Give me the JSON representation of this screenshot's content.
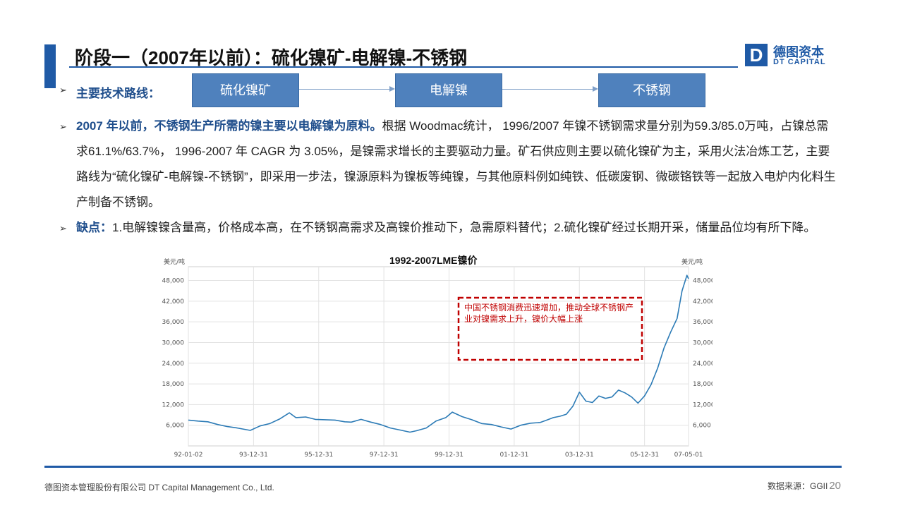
{
  "header": {
    "title": "阶段一（2007年以前）：硫化镍矿-电解镍-不锈钢",
    "logo_letter": "D",
    "logo_cn": "德图资本",
    "logo_en": "DT CAPITAL"
  },
  "route": {
    "label": "主要技术路线：",
    "steps": [
      "硫化镍矿",
      "电解镍",
      "不锈钢"
    ]
  },
  "para1": {
    "highlight": "2007 年以前，不锈钢生产所需的镍主要以电解镍为原料。",
    "text": "根据 Woodmac统计， 1996/2007 年镍不锈钢需求量分别为59.3/85.0万吨，占镍总需求61.1%/63.7%， 1996-2007 年 CAGR 为 3.05%，是镍需求增长的主要驱动力量。矿石供应则主要以硫化镍矿为主，采用火法冶炼工艺，主要路线为“硫化镍矿-电解镍-不锈钢”，即采用一步法，镍源原料为镍板等纯镍，与其他原料例如纯铁、低碳废钢、微碳铬铁等一起放入电炉内化料生产制备不锈钢。"
  },
  "para2": {
    "highlight": "缺点：",
    "text": "1.电解镍镍含量高，价格成本高，在不锈钢高需求及高镍价推动下，急需原料替代；2.硫化镍矿经过长期开采，储量品位均有所下降。"
  },
  "chart_data": {
    "type": "line",
    "title": "1992-2007LME镍价",
    "left_unit": "美元/吨",
    "right_unit": "美元/吨",
    "ylim": [
      0,
      52000
    ],
    "yticks": [
      6000,
      12000,
      18000,
      24000,
      30000,
      36000,
      42000,
      48000
    ],
    "ytick_labels": [
      "6,000",
      "12,000",
      "18,000",
      "24,000",
      "30,000",
      "36,000",
      "42,000",
      "48,000"
    ],
    "xlim": [
      1992.0,
      2007.35
    ],
    "xticks": [
      1992.0,
      1994.0,
      1996.0,
      1998.0,
      2000.0,
      2002.0,
      2004.0,
      2006.0,
      2007.35
    ],
    "xtick_labels": [
      "92-01-02",
      "93-12-31",
      "95-12-31",
      "97-12-31",
      "99-12-31",
      "01-12-31",
      "03-12-31",
      "05-12-31",
      "07-05-01"
    ],
    "grid": true,
    "series": [
      {
        "color": "#2c7bb6",
        "x": [
          1992.0,
          1992.3,
          1992.6,
          1992.9,
          1993.2,
          1993.5,
          1993.9,
          1994.2,
          1994.5,
          1994.8,
          1995.1,
          1995.3,
          1995.6,
          1995.9,
          1996.2,
          1996.5,
          1996.8,
          1997.0,
          1997.3,
          1997.6,
          1997.9,
          1998.2,
          1998.5,
          1998.8,
          1999.0,
          1999.3,
          1999.6,
          1999.9,
          2000.1,
          2000.4,
          2000.7,
          2001.0,
          2001.3,
          2001.6,
          2001.9,
          2002.2,
          2002.5,
          2002.8,
          2003.0,
          2003.2,
          2003.4,
          2003.6,
          2003.8,
          2004.0,
          2004.2,
          2004.4,
          2004.6,
          2004.8,
          2005.0,
          2005.2,
          2005.4,
          2005.6,
          2005.8,
          2006.0,
          2006.2,
          2006.4,
          2006.6,
          2006.8,
          2007.0,
          2007.15,
          2007.3,
          2007.35
        ],
        "y": [
          7500,
          7200,
          7000,
          6200,
          5600,
          5200,
          4500,
          5800,
          6500,
          7800,
          9600,
          8200,
          8400,
          7700,
          7600,
          7500,
          7000,
          6900,
          7700,
          6900,
          6200,
          5200,
          4600,
          4000,
          4400,
          5200,
          7200,
          8200,
          9800,
          8500,
          7600,
          6500,
          6200,
          5500,
          4900,
          6000,
          6600,
          6800,
          7500,
          8200,
          8600,
          9200,
          11500,
          15600,
          13000,
          12600,
          14500,
          13800,
          14200,
          16200,
          15400,
          14200,
          12400,
          14500,
          17800,
          22500,
          28500,
          33000,
          37000,
          45000,
          49500,
          48500
        ]
      }
    ],
    "annotation": "中国不锈钢消费迅速增加，推动全球不锈钢产业对镍需求上升，镍价大幅上涨"
  },
  "footer": {
    "company": "德图资本管理股份有限公司  DT Capital  Management  Co., Ltd.",
    "source": "数据来源：GGII",
    "page": "20"
  }
}
